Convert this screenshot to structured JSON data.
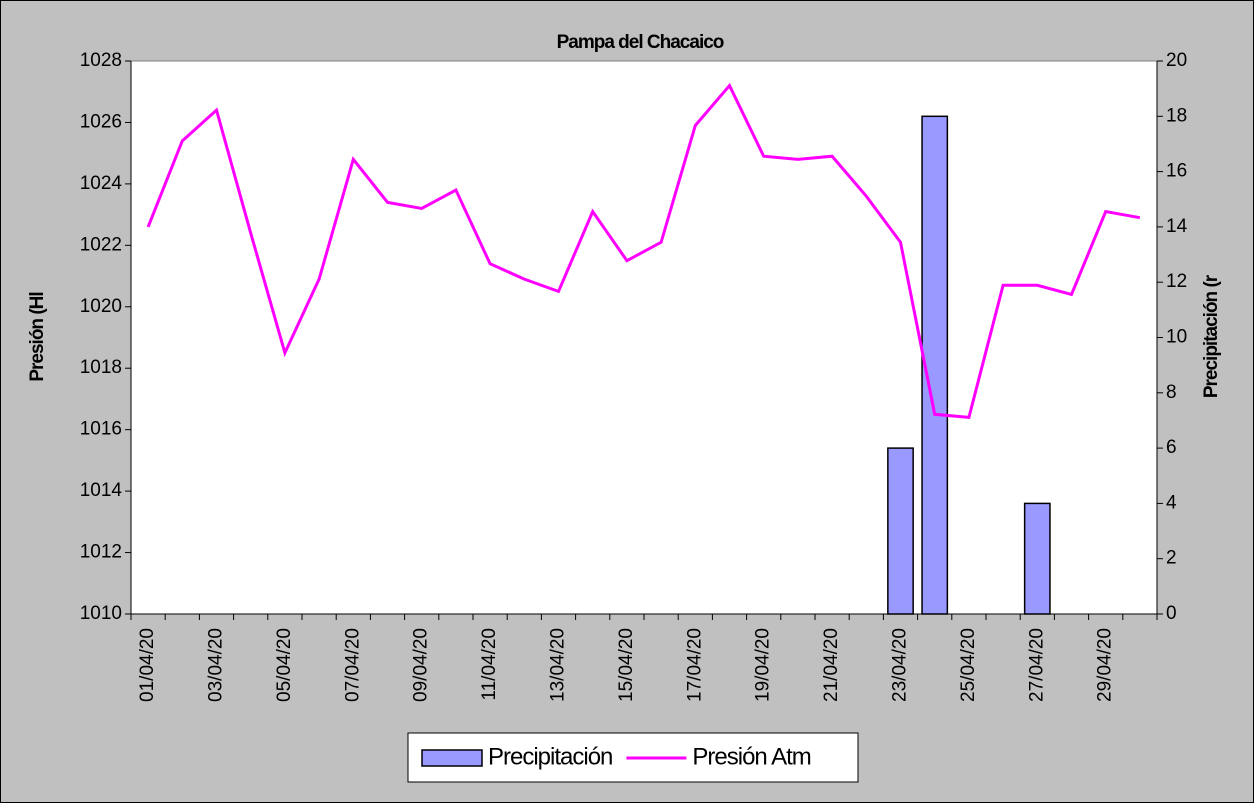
{
  "chart_data": {
    "type": "bar-line",
    "title": "Pampa del Chacaico",
    "y_label": "Presión (Hl",
    "y2_label": "Precipitación (r",
    "categories": [
      "01/04/20",
      null,
      "03/04/20",
      null,
      "05/04/20",
      null,
      "07/04/20",
      null,
      "09/04/20",
      null,
      "11/04/20",
      null,
      "13/04/20",
      null,
      "15/04/20",
      null,
      "17/04/20",
      null,
      "19/04/20",
      null,
      "21/04/20",
      null,
      "23/04/20",
      null,
      "25/04/20",
      null,
      "27/04/20",
      null,
      "29/04/20",
      null
    ],
    "series": [
      {
        "name": "Precipitación",
        "type": "bar",
        "axis": "y2",
        "color": "#9999ff",
        "values": [
          0,
          0,
          0,
          0,
          0,
          0,
          0,
          0,
          0,
          0,
          0,
          0,
          0,
          0,
          0,
          0,
          0,
          0,
          0,
          0,
          0,
          0,
          6,
          18,
          0,
          0,
          4,
          0,
          0,
          0
        ]
      },
      {
        "name": "Presión Atm",
        "type": "line",
        "axis": "y",
        "color": "#ff00ff",
        "values": [
          1022.6,
          1025.4,
          1026.4,
          1022.4,
          1018.5,
          1020.9,
          1024.8,
          1023.4,
          1023.2,
          1023.8,
          1021.4,
          1020.9,
          1020.5,
          1023.1,
          1021.5,
          1022.1,
          1025.9,
          1027.2,
          1024.9,
          1024.8,
          1024.9,
          1023.6,
          1022.1,
          1016.5,
          1016.4,
          1020.7,
          1020.7,
          1020.4,
          1023.1,
          1022.9
        ]
      }
    ],
    "ylim": [
      1010,
      1028
    ],
    "yticks": [
      1010,
      1012,
      1014,
      1016,
      1018,
      1020,
      1022,
      1024,
      1026,
      1028
    ],
    "y2lim": [
      0,
      20
    ],
    "y2ticks": [
      0,
      2,
      4,
      6,
      8,
      10,
      12,
      14,
      16,
      18,
      20
    ],
    "legend": "bottom"
  }
}
